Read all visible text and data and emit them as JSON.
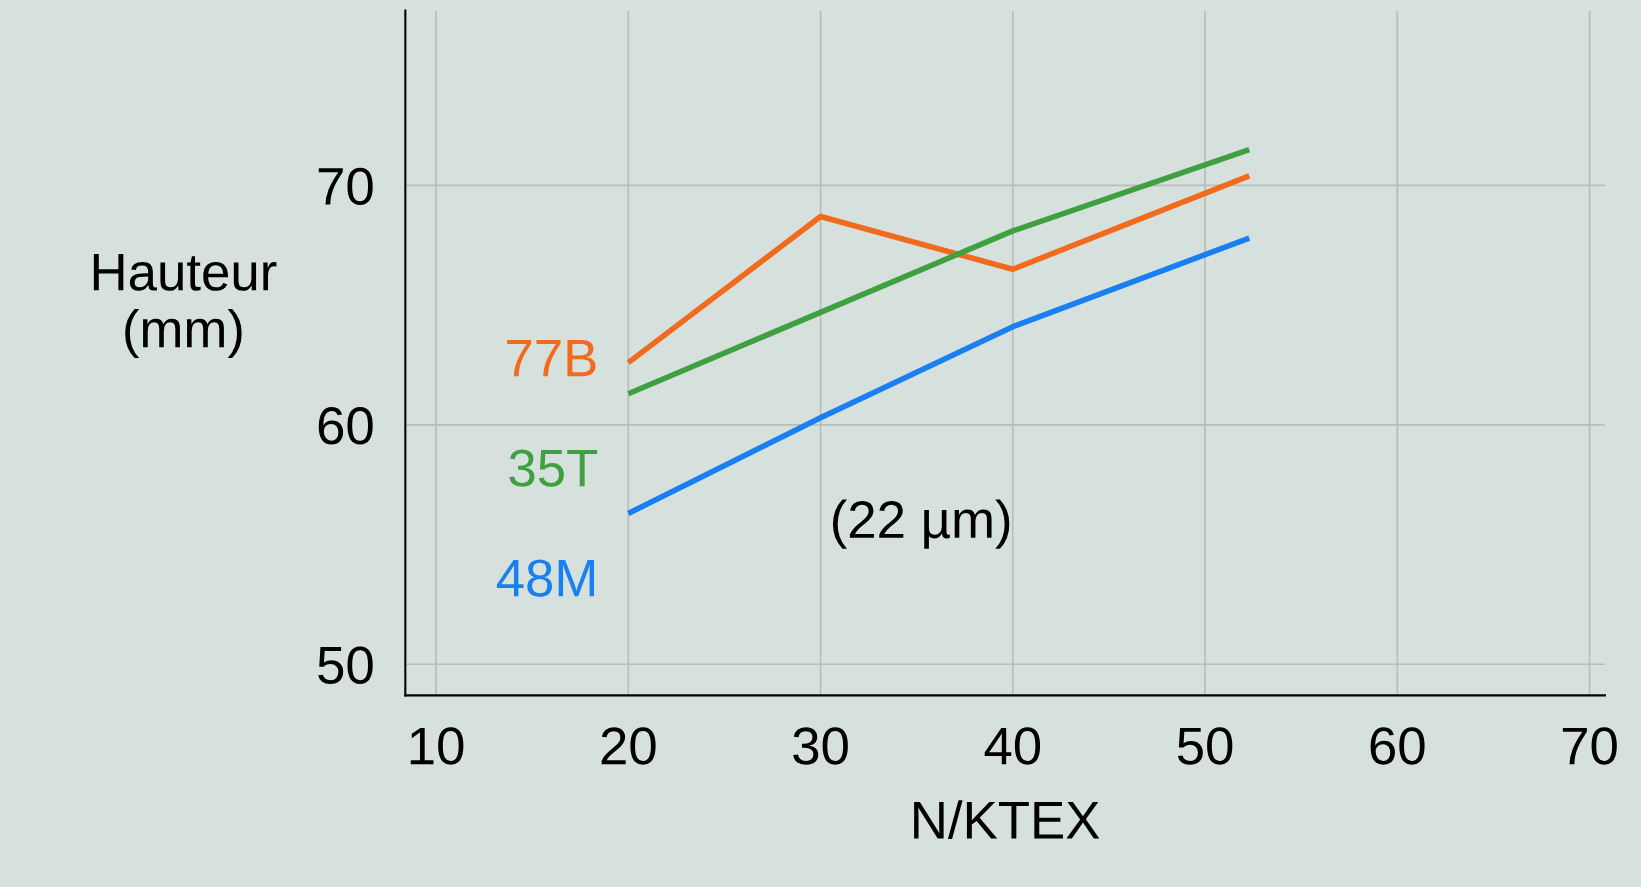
{
  "chart_data": {
    "type": "line",
    "xlabel": "N/KTEX",
    "ylabel": "Hauteur\n(mm)",
    "x": [
      20,
      30,
      40,
      52.3
    ],
    "series": [
      {
        "name": "77B",
        "color": "#f26a1b",
        "values": [
          62.6,
          68.7,
          66.5,
          70.4
        ]
      },
      {
        "name": "35T",
        "color": "#3fa040",
        "values": [
          61.3,
          64.7,
          68.1,
          71.5
        ]
      },
      {
        "name": "48M",
        "color": "#1a7ff0",
        "values": [
          56.3,
          60.3,
          64.1,
          67.8
        ]
      }
    ],
    "xlim": [
      8.4,
      70.8
    ],
    "xticks": [
      10,
      20,
      30,
      40,
      50,
      60,
      70
    ],
    "ylim": [
      48.7,
      77.3
    ],
    "yticks": [
      50,
      60,
      70
    ],
    "annotations": [
      "(22 µm)"
    ],
    "grid": true,
    "legend": false,
    "marker": "none",
    "line_style": "solid"
  }
}
